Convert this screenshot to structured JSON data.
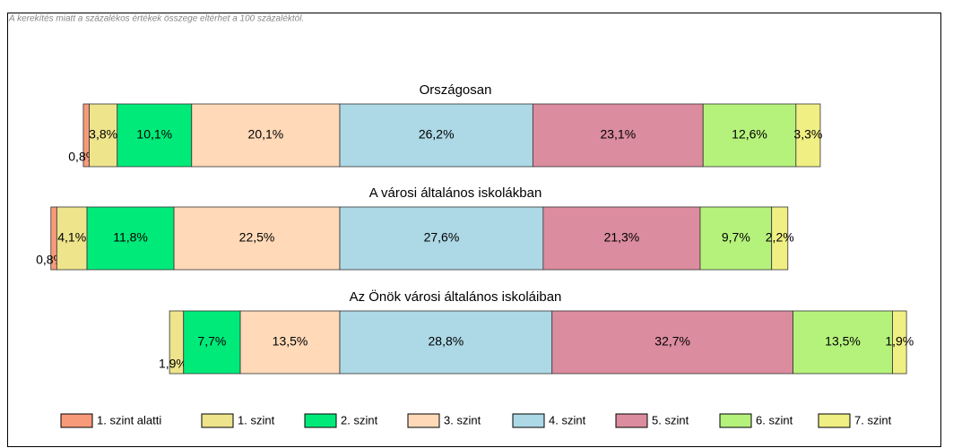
{
  "chart_data": {
    "type": "bar",
    "note": "A kerekítés miatt a  százalékos értékek összege eltérhet a 100 százaléktól.",
    "categories": [
      "Országosan",
      "A városi általános iskolákban",
      "Az Önök városi általános iskoláiban"
    ],
    "series": [
      {
        "name": "1. szint alatti",
        "color": "#f79a7a",
        "values": [
          0.8,
          0.8,
          null
        ],
        "value_labels": [
          "0,8%",
          "0,8%",
          null
        ]
      },
      {
        "name": "1. szint",
        "color": "#ede48c",
        "values": [
          3.8,
          4.1,
          1.9
        ],
        "value_labels": [
          "3,8%",
          "4,1%",
          "1,9%"
        ]
      },
      {
        "name": "2. szint",
        "color": "#00ea7a",
        "values": [
          10.1,
          11.8,
          7.7
        ],
        "value_labels": [
          "10,1%",
          "11,8%",
          "7,7%"
        ]
      },
      {
        "name": "3. szint",
        "color": "#ffd9b8",
        "values": [
          20.1,
          22.5,
          13.5
        ],
        "value_labels": [
          "20,1%",
          "22,5%",
          "13,5%"
        ]
      },
      {
        "name": "4. szint",
        "color": "#add8e6",
        "values": [
          26.2,
          27.6,
          28.8
        ],
        "value_labels": [
          "26,2%",
          "27,6%",
          "28,8%"
        ]
      },
      {
        "name": "5. szint",
        "color": "#db8c9e",
        "values": [
          23.1,
          21.3,
          32.7
        ],
        "value_labels": [
          "23,1%",
          "21,3%",
          "32,7%"
        ]
      },
      {
        "name": "6. szint",
        "color": "#b5f27c",
        "values": [
          12.6,
          9.7,
          13.5
        ],
        "value_labels": [
          "12,6%",
          "9,7%",
          "13,5%"
        ]
      },
      {
        "name": "7. szint",
        "color": "#f0ef84",
        "values": [
          3.3,
          2.2,
          1.9
        ],
        "value_labels": [
          "3,3%",
          "2,2%",
          "1,9%"
        ]
      }
    ]
  }
}
